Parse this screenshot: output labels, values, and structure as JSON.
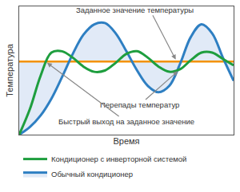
{
  "chart_data": {
    "type": "line",
    "x": [
      0,
      0.5,
      1,
      1.5,
      2,
      2.5,
      3,
      3.5,
      4,
      4.5,
      5,
      5.5,
      6,
      6.5,
      7,
      7.5,
      8,
      8.5,
      9,
      9.5,
      10
    ],
    "xlim": [
      0,
      10
    ],
    "ylim": [
      0,
      10
    ],
    "x_label": "Время",
    "y_label": "Температура",
    "tick_labels": false,
    "grid": false,
    "legend": "bottom",
    "series": [
      {
        "name": "Кондиционер с инверторной системой",
        "color": "#1e9e3e",
        "values": [
          0,
          2.0,
          4.6,
          6.4,
          6.5,
          6.0,
          5.3,
          4.9,
          5.0,
          5.6,
          6.3,
          6.5,
          6.0,
          5.3,
          4.9,
          5.1,
          5.8,
          6.4,
          6.4,
          5.9,
          5.4
        ]
      },
      {
        "name": "Обычный кондиционер",
        "color": "#2e7fc2",
        "values": [
          0,
          0.6,
          1.5,
          2.8,
          4.5,
          6.3,
          7.8,
          8.6,
          8.7,
          7.9,
          6.5,
          5.0,
          3.8,
          3.3,
          3.8,
          5.5,
          7.6,
          8.6,
          7.9,
          6.0,
          4.2
        ]
      }
    ],
    "reference_line": {
      "label": "Заданное значение температуры",
      "value": 5.7,
      "color": "#f39200"
    },
    "annotations": [
      "Перепады температур",
      "Быстрый выход на заданное значение"
    ]
  }
}
